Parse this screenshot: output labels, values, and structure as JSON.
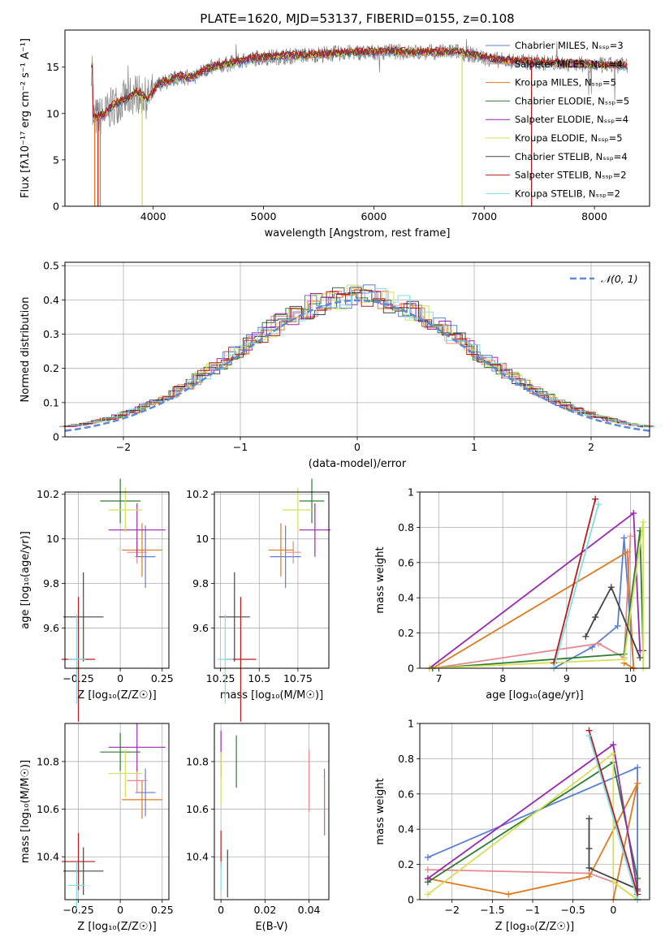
{
  "figure": {
    "title": "PLATE=1620, MJD=53137, FIBERID=0155, z=0.108"
  },
  "colors": {
    "chabrier_miles": "#5b7fd6",
    "salpeter_miles": "#e68a8f",
    "kroupa_miles": "#e07a1f",
    "chabrier_elodie": "#2e7d32",
    "salpeter_elodie": "#9c27b0",
    "kroupa_elodie": "#d4e157",
    "chabrier_stelib": "#444444",
    "salpeter_stelib": "#b71c1c",
    "kroupa_stelib": "#80deea",
    "data": "#808080",
    "normal": "#5b8bd6"
  },
  "chart_data": [
    {
      "id": "spectrum",
      "type": "line",
      "xlabel": "wavelength [Angstrom, rest frame]",
      "ylabel": "Flux [fλ10⁻¹⁷ erg cm⁻² s⁻¹ A⁻¹]",
      "xlim": [
        3200,
        8500
      ],
      "ylim": [
        0,
        19
      ],
      "xticks": [
        4000,
        5000,
        6000,
        7000,
        8000
      ],
      "yticks": [
        0,
        5,
        10,
        15
      ],
      "legend_position": "right",
      "legend": [
        {
          "label": "Chabrier MILES, Nₛₛₚ=3",
          "color_key": "chabrier_miles"
        },
        {
          "label": "Salpeter MILES, Nₛₛₚ=4",
          "color_key": "salpeter_miles"
        },
        {
          "label": "Kroupa MILES, Nₛₛₚ=5",
          "color_key": "kroupa_miles"
        },
        {
          "label": "Chabrier ELODIE, Nₛₛₚ=5",
          "color_key": "chabrier_elodie"
        },
        {
          "label": "Salpeter ELODIE, Nₛₛₚ=4",
          "color_key": "salpeter_elodie"
        },
        {
          "label": "Kroupa ELODIE, Nₛₛₚ=5",
          "color_key": "kroupa_elodie"
        },
        {
          "label": "Chabrier STELIB, Nₛₛₚ=4",
          "color_key": "chabrier_stelib"
        },
        {
          "label": "Salpeter STELIB, Nₛₛₚ=2",
          "color_key": "salpeter_stelib"
        },
        {
          "label": "Kroupa STELIB, Nₛₛₚ=2",
          "color_key": "kroupa_stelib"
        }
      ],
      "model": {
        "x": [
          3450,
          3550,
          3650,
          3750,
          3850,
          3950,
          4050,
          4150,
          4250,
          4350,
          4450,
          4550,
          4650,
          4750,
          4850,
          4950,
          5100,
          5250,
          5400,
          5550,
          5700,
          5850,
          6000,
          6150,
          6300,
          6450,
          6600,
          6750,
          6900,
          7100,
          7300,
          7500,
          7700,
          7900,
          8100,
          8300
        ],
        "y": [
          9.5,
          9.8,
          11.0,
          11.5,
          12.3,
          11.5,
          13.2,
          13.5,
          14.0,
          13.8,
          14.6,
          15.0,
          15.3,
          15.5,
          15.8,
          16.0,
          16.1,
          16.2,
          16.3,
          16.4,
          16.5,
          16.6,
          16.6,
          16.7,
          16.6,
          16.6,
          16.6,
          16.7,
          16.3,
          15.8,
          15.6,
          15.5,
          15.4,
          15.3,
          15.2,
          15.2
        ]
      },
      "model_edges": [
        {
          "series": "kroupa_miles",
          "x0": 3470,
          "x1": 3520
        },
        {
          "series": "kroupa_elodie",
          "x0": 3900,
          "x1": 6800
        },
        {
          "series": "salpeter_stelib",
          "x0": 3500,
          "x1": 7430
        }
      ]
    },
    {
      "id": "residuals",
      "type": "histogram",
      "xlabel": "(data-model)/error",
      "ylabel": "Normed distribution",
      "xlim": [
        -2.5,
        2.5
      ],
      "ylim": [
        0,
        0.51
      ],
      "xticks": [
        -2,
        -1,
        0,
        1,
        2
      ],
      "yticks": [
        0,
        0.1,
        0.2,
        0.3,
        0.4,
        0.5
      ],
      "legend_position": "top-right",
      "legend": [
        {
          "label": "𝒩(0, 1)",
          "color_key": "normal"
        }
      ],
      "bin_width": 0.1
    },
    {
      "id": "age_vs_z",
      "type": "scatter",
      "xlabel": "Z [log₁₀(Z/Z☉)]",
      "ylabel": "age  [log₁₀(age/yr)]",
      "xlim": [
        -0.33,
        0.29
      ],
      "ylim": [
        9.42,
        10.21
      ],
      "xticks": [
        -0.25,
        0.0,
        0.25
      ],
      "yticks": [
        9.6,
        9.8,
        10.0,
        10.2
      ],
      "points": [
        {
          "s": "chabrier_miles",
          "x": 0.15,
          "y": 9.92,
          "ex": 0.06,
          "ey": 0.14
        },
        {
          "s": "salpeter_miles",
          "x": 0.1,
          "y": 9.94,
          "ex": 0.06,
          "ey": 0.05
        },
        {
          "s": "kroupa_miles",
          "x": 0.13,
          "y": 9.95,
          "ex": 0.12,
          "ey": 0.12
        },
        {
          "s": "chabrier_elodie",
          "x": 0.0,
          "y": 10.17,
          "ex": 0.12,
          "ey": 0.1
        },
        {
          "s": "salpeter_elodie",
          "x": 0.1,
          "y": 10.04,
          "ex": 0.17,
          "ey": 0.12
        },
        {
          "s": "kroupa_elodie",
          "x": 0.03,
          "y": 10.13,
          "ex": 0.1,
          "ey": 0.1
        },
        {
          "s": "chabrier_stelib",
          "x": -0.22,
          "y": 9.65,
          "ex": 0.12,
          "ey": 0.2
        },
        {
          "s": "salpeter_stelib",
          "x": -0.25,
          "y": 9.46,
          "ex": 0.1,
          "ey": 0.28
        },
        {
          "s": "kroupa_stelib",
          "x": -0.26,
          "y": 9.46,
          "ex": 0.05,
          "ey": 0.2
        }
      ]
    },
    {
      "id": "age_vs_mass",
      "type": "scatter",
      "xlabel": "mass [log₁₀(M/M☉)]",
      "ylabel": "",
      "xlim": [
        10.21,
        10.95
      ],
      "ylim": [
        9.42,
        10.21
      ],
      "xticks": [
        10.25,
        10.5,
        10.75
      ],
      "yticks": [
        9.6,
        9.8,
        10.0,
        10.2
      ],
      "points": [
        {
          "s": "chabrier_miles",
          "x": 10.67,
          "y": 9.92,
          "ex": 0.1,
          "ey": 0.14
        },
        {
          "s": "salpeter_miles",
          "x": 10.72,
          "y": 9.94,
          "ex": 0.05,
          "ey": 0.05
        },
        {
          "s": "kroupa_miles",
          "x": 10.64,
          "y": 9.95,
          "ex": 0.08,
          "ey": 0.12
        },
        {
          "s": "chabrier_elodie",
          "x": 10.84,
          "y": 10.17,
          "ex": 0.08,
          "ey": 0.1
        },
        {
          "s": "salpeter_elodie",
          "x": 10.86,
          "y": 10.04,
          "ex": 0.1,
          "ey": 0.12
        },
        {
          "s": "kroupa_elodie",
          "x": 10.75,
          "y": 10.13,
          "ex": 0.1,
          "ey": 0.1
        },
        {
          "s": "chabrier_stelib",
          "x": 10.34,
          "y": 9.65,
          "ex": 0.1,
          "ey": 0.2
        },
        {
          "s": "salpeter_stelib",
          "x": 10.38,
          "y": 9.46,
          "ex": 0.1,
          "ey": 0.28
        },
        {
          "s": "kroupa_stelib",
          "x": 10.28,
          "y": 9.46,
          "ex": 0.05,
          "ey": 0.2
        }
      ]
    },
    {
      "id": "weight_vs_age",
      "type": "line",
      "xlabel": "age  [log₁₀(age/yr)]",
      "ylabel": "mass weight",
      "xlim": [
        6.7,
        10.3
      ],
      "ylim": [
        0,
        1
      ],
      "xticks": [
        7,
        8,
        9,
        10
      ],
      "yticks": [
        0,
        0.2,
        0.4,
        0.6,
        0.8,
        1.0
      ],
      "series": [
        {
          "s": "chabrier_miles",
          "x": [
            8.8,
            9.4,
            9.8,
            9.9,
            10.05
          ],
          "y": [
            0.0,
            0.12,
            0.24,
            0.74,
            0.0
          ]
        },
        {
          "s": "salpeter_miles",
          "x": [
            6.9,
            9.5,
            9.9,
            10.0
          ],
          "y": [
            0.0,
            0.14,
            0.06,
            0.75
          ]
        },
        {
          "s": "kroupa_miles",
          "x": [
            6.9,
            9.95,
            10.05,
            9.9
          ],
          "y": [
            0.0,
            0.66,
            0.0,
            0.03
          ]
        },
        {
          "s": "chabrier_elodie",
          "x": [
            6.9,
            9.9,
            10.15,
            10.2
          ],
          "y": [
            0.0,
            0.08,
            0.78,
            0.1
          ]
        },
        {
          "s": "salpeter_elodie",
          "x": [
            6.85,
            10.05,
            10.15
          ],
          "y": [
            0.0,
            0.88,
            0.1
          ]
        },
        {
          "s": "kroupa_elodie",
          "x": [
            6.85,
            9.9,
            10.2,
            10.2
          ],
          "y": [
            0.0,
            0.05,
            0.83,
            0.0
          ]
        },
        {
          "s": "chabrier_stelib",
          "x": [
            9.3,
            9.45,
            9.7,
            10.15
          ],
          "y": [
            0.18,
            0.29,
            0.46,
            0.06
          ]
        },
        {
          "s": "salpeter_stelib",
          "x": [
            8.8,
            9.45
          ],
          "y": [
            0.03,
            0.96
          ]
        },
        {
          "s": "kroupa_stelib",
          "x": [
            8.8,
            9.5
          ],
          "y": [
            0.0,
            0.93
          ]
        }
      ]
    },
    {
      "id": "mass_vs_z",
      "type": "scatter",
      "xlabel": "Z [log₁₀(Z/Z☉)]",
      "ylabel": "mass [log₁₀(M/M☉)]",
      "xlim": [
        -0.33,
        0.29
      ],
      "ylim": [
        10.22,
        10.96
      ],
      "xticks": [
        -0.25,
        0.0,
        0.25
      ],
      "yticks": [
        10.4,
        10.6,
        10.8
      ],
      "points": [
        {
          "s": "chabrier_miles",
          "x": 0.15,
          "y": 10.67,
          "ex": 0.06,
          "ey": 0.1
        },
        {
          "s": "salpeter_miles",
          "x": 0.1,
          "y": 10.72,
          "ex": 0.06,
          "ey": 0.05
        },
        {
          "s": "kroupa_miles",
          "x": 0.13,
          "y": 10.64,
          "ex": 0.12,
          "ey": 0.08
        },
        {
          "s": "chabrier_elodie",
          "x": 0.0,
          "y": 10.84,
          "ex": 0.12,
          "ey": 0.08
        },
        {
          "s": "salpeter_elodie",
          "x": 0.1,
          "y": 10.86,
          "ex": 0.17,
          "ey": 0.1
        },
        {
          "s": "kroupa_elodie",
          "x": 0.03,
          "y": 10.75,
          "ex": 0.1,
          "ey": 0.1
        },
        {
          "s": "chabrier_stelib",
          "x": -0.22,
          "y": 10.34,
          "ex": 0.12,
          "ey": 0.1
        },
        {
          "s": "salpeter_stelib",
          "x": -0.25,
          "y": 10.38,
          "ex": 0.1,
          "ey": 0.12
        },
        {
          "s": "kroupa_stelib",
          "x": -0.26,
          "y": 10.28,
          "ex": 0.05,
          "ey": 0.1
        }
      ]
    },
    {
      "id": "mass_vs_ebv",
      "type": "scatter",
      "xlabel": "E(B-V)",
      "ylabel": "",
      "xlim": [
        -0.003,
        0.049
      ],
      "ylim": [
        10.22,
        10.96
      ],
      "xticks": [
        0.0,
        0.02,
        0.04
      ],
      "yticks": [
        10.4,
        10.6,
        10.8
      ],
      "points": [
        {
          "s": "chabrier_miles",
          "x": 0.047,
          "y": 10.63,
          "ex": 0,
          "ey": 0.14
        },
        {
          "s": "salpeter_miles",
          "x": 0.04,
          "y": 10.72,
          "ex": 0,
          "ey": 0.13
        },
        {
          "s": "kroupa_miles",
          "x": 0.047,
          "y": 10.61,
          "ex": 0,
          "ey": 0.12
        },
        {
          "s": "chabrier_elodie",
          "x": 0.007,
          "y": 10.8,
          "ex": 0,
          "ey": 0.11
        },
        {
          "s": "salpeter_elodie",
          "x": 0.0,
          "y": 10.83,
          "ex": 0,
          "ey": 0.1
        },
        {
          "s": "kroupa_elodie",
          "x": 0.0,
          "y": 10.73,
          "ex": 0,
          "ey": 0.11
        },
        {
          "s": "chabrier_stelib",
          "x": 0.003,
          "y": 10.33,
          "ex": 0,
          "ey": 0.1
        },
        {
          "s": "salpeter_stelib",
          "x": 0.0,
          "y": 10.43,
          "ex": 0,
          "ey": 0.08
        },
        {
          "s": "kroupa_stelib",
          "x": 0.0,
          "y": 10.32,
          "ex": 0,
          "ey": 0.06
        }
      ]
    },
    {
      "id": "weight_vs_z",
      "type": "line",
      "xlabel": "Z [log₁₀(Z/Z☉)]",
      "ylabel": "mass weight",
      "xlim": [
        -2.4,
        0.45
      ],
      "ylim": [
        0,
        1
      ],
      "xticks": [
        -2.0,
        -1.5,
        -1.0,
        -0.5,
        0.0
      ],
      "yticks": [
        0,
        0.2,
        0.4,
        0.6,
        0.8,
        1.0
      ],
      "series": [
        {
          "s": "chabrier_miles",
          "x": [
            -2.3,
            0.3,
            0.3
          ],
          "y": [
            0.24,
            0.75,
            0.0
          ]
        },
        {
          "s": "salpeter_miles",
          "x": [
            -2.3,
            -0.3,
            0.0,
            0.3
          ],
          "y": [
            0.17,
            0.15,
            0.1,
            0.0
          ]
        },
        {
          "s": "kroupa_miles",
          "x": [
            -2.3,
            -1.3,
            -0.3,
            0.3,
            0.0
          ],
          "y": [
            0.12,
            0.03,
            0.13,
            0.66,
            0.0
          ]
        },
        {
          "s": "chabrier_elodie",
          "x": [
            -2.3,
            0.0,
            0.3,
            0.3
          ],
          "y": [
            0.1,
            0.78,
            0.12,
            0.0
          ]
        },
        {
          "s": "salpeter_elodie",
          "x": [
            -2.3,
            0.0,
            0.3
          ],
          "y": [
            0.12,
            0.88,
            0.05
          ]
        },
        {
          "s": "kroupa_elodie",
          "x": [
            -2.3,
            0.0,
            0.0,
            0.3
          ],
          "y": [
            0.03,
            0.83,
            0.1,
            0.0
          ]
        },
        {
          "s": "chabrier_stelib",
          "x": [
            -0.3,
            -0.3,
            -0.3,
            0.3
          ],
          "y": [
            0.46,
            0.29,
            0.18,
            0.06
          ]
        },
        {
          "s": "salpeter_stelib",
          "x": [
            -0.3,
            0.3
          ],
          "y": [
            0.96,
            0.03
          ]
        },
        {
          "s": "kroupa_stelib",
          "x": [
            -0.3,
            0.3
          ],
          "y": [
            0.93,
            0.0
          ]
        }
      ]
    }
  ]
}
